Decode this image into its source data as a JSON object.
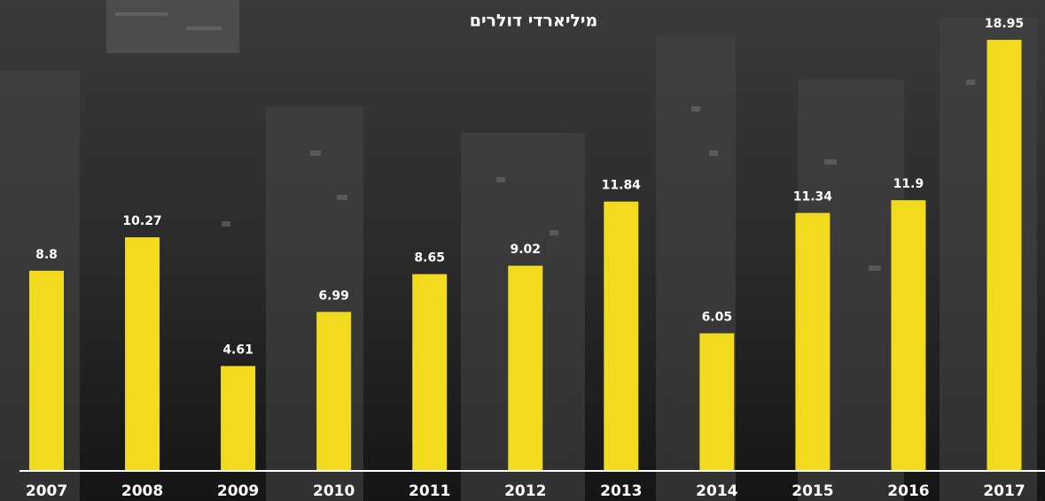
{
  "chart_data": {
    "type": "bar",
    "title": "מיליארדי דולרים",
    "categories": [
      "2007",
      "2008",
      "2009",
      "2010",
      "2011",
      "2012",
      "2013",
      "2014",
      "2015",
      "2016",
      "2017"
    ],
    "values": [
      8.8,
      10.27,
      4.61,
      6.99,
      8.65,
      9.02,
      11.84,
      6.05,
      11.34,
      11.9,
      18.95
    ],
    "color": "#f2da1f"
  }
}
